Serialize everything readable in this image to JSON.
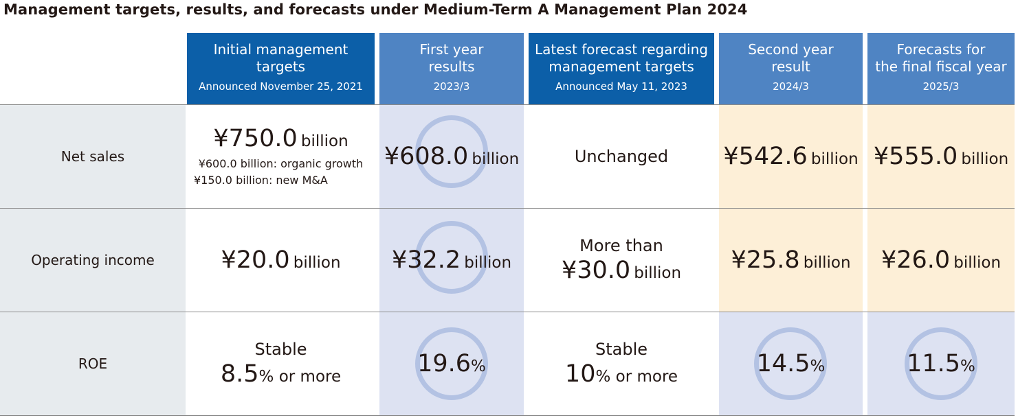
{
  "title": "Management targets, results, and forecasts under Medium-Term A Management Plan 2024",
  "columns": [
    {
      "label": "Initial management\ntargets",
      "sub": "Announced November 25, 2021"
    },
    {
      "label": "First year\nresults",
      "sub": "2023/3"
    },
    {
      "label": "Latest forecast regarding\nmanagement targets",
      "sub": "Announced May 11, 2023"
    },
    {
      "label": "Second year\nresult",
      "sub": "2024/3"
    },
    {
      "label": "Forecasts for\nthe final fiscal year",
      "sub": "2025/3"
    }
  ],
  "rows": [
    {
      "label": "Net sales",
      "initial": {
        "value": "¥750.0",
        "unit": "billion",
        "notes": [
          "¥600.0 billion: organic growth",
          "¥150.0 billion: new M&A"
        ]
      },
      "first": {
        "value": "¥608.0",
        "unit": "billion"
      },
      "latest": {
        "text": "Unchanged"
      },
      "second": {
        "value": "¥542.6",
        "unit": "billion"
      },
      "final": {
        "value": "¥555.0",
        "unit": "billion"
      }
    },
    {
      "label": "Operating income",
      "initial": {
        "value": "¥20.0",
        "unit": "billion"
      },
      "first": {
        "value": "¥32.2",
        "unit": "billion"
      },
      "latest": {
        "prefix": "More than",
        "value": "¥30.0",
        "unit": "billion"
      },
      "second": {
        "value": "¥25.8",
        "unit": "billion"
      },
      "final": {
        "value": "¥26.0",
        "unit": "billion"
      }
    },
    {
      "label": "ROE",
      "initial": {
        "prefix": "Stable",
        "value": "8.5",
        "unit": "% or more"
      },
      "first": {
        "value": "19.6",
        "unit": "%"
      },
      "latest": {
        "prefix": "Stable",
        "value": "10",
        "unit": "% or more"
      },
      "second": {
        "value": "14.5",
        "unit": "%"
      },
      "final": {
        "value": "11.5",
        "unit": "%"
      }
    }
  ],
  "colors": {
    "header_dark": "#0c5fa8",
    "header_light": "#4f84c3",
    "row_label_bg": "#e7ebee",
    "results_bg": "#dde2f2",
    "forecast_bg": "#fdefd7",
    "circle": "#b3c2e3"
  }
}
